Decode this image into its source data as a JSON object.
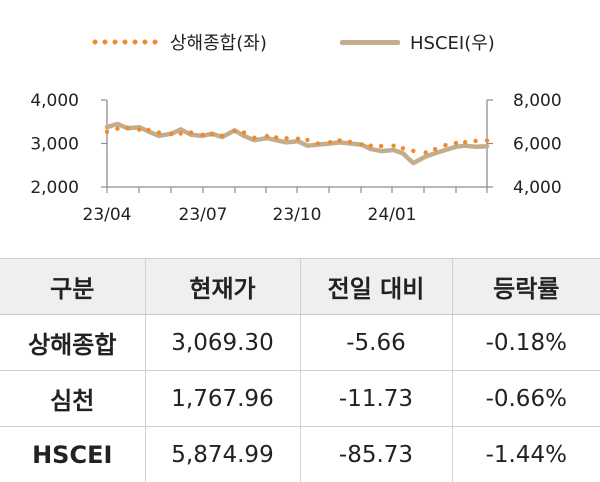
{
  "chart_data": {
    "type": "line",
    "legend_placement": "top",
    "x_tick_labels": [
      "23/04",
      "23/07",
      "23/10",
      "24/01"
    ],
    "y_left": {
      "range": [
        2000,
        4000
      ],
      "ticks": [
        "2,000",
        "3,000",
        "4,000"
      ]
    },
    "y_right": {
      "range": [
        4000,
        8000
      ],
      "ticks": [
        "4,000",
        "6,000",
        "8,000"
      ]
    },
    "grid": false,
    "series": [
      {
        "name": "상해종합(좌)",
        "axis": "left",
        "style": "dotted",
        "color": "#ef8a2d",
        "x": [
          "2023-03-31",
          "2023-04-10",
          "2023-04-20",
          "2023-05-01",
          "2023-05-10",
          "2023-05-20",
          "2023-06-01",
          "2023-06-10",
          "2023-06-20",
          "2023-07-01",
          "2023-07-10",
          "2023-07-20",
          "2023-08-01",
          "2023-08-10",
          "2023-08-20",
          "2023-09-01",
          "2023-09-10",
          "2023-09-20",
          "2023-10-01",
          "2023-10-10",
          "2023-10-20",
          "2023-11-01",
          "2023-11-10",
          "2023-11-20",
          "2023-12-01",
          "2023-12-10",
          "2023-12-20",
          "2024-01-01",
          "2024-01-10",
          "2024-01-20",
          "2024-02-01",
          "2024-02-10",
          "2024-02-20",
          "2024-03-01",
          "2024-03-10",
          "2024-03-20",
          "2024-03-31"
        ],
        "values": [
          3270,
          3340,
          3360,
          3320,
          3310,
          3250,
          3220,
          3230,
          3250,
          3200,
          3210,
          3180,
          3290,
          3250,
          3130,
          3170,
          3140,
          3120,
          3110,
          3080,
          3000,
          3030,
          3070,
          3040,
          2980,
          2950,
          2940,
          2950,
          2890,
          2830,
          2790,
          2870,
          2960,
          3010,
          3030,
          3060,
          3069
        ]
      },
      {
        "name": "HSCEI(우)",
        "axis": "right",
        "style": "solid",
        "color": "#c4ad8c",
        "x": [
          "2023-03-31",
          "2023-04-10",
          "2023-04-20",
          "2023-05-01",
          "2023-05-10",
          "2023-05-20",
          "2023-06-01",
          "2023-06-10",
          "2023-06-20",
          "2023-07-01",
          "2023-07-10",
          "2023-07-20",
          "2023-08-01",
          "2023-08-10",
          "2023-08-20",
          "2023-09-01",
          "2023-09-10",
          "2023-09-20",
          "2023-10-01",
          "2023-10-10",
          "2023-10-20",
          "2023-11-01",
          "2023-11-10",
          "2023-11-20",
          "2023-12-01",
          "2023-12-10",
          "2023-12-20",
          "2024-01-01",
          "2024-01-10",
          "2024-01-20",
          "2024-02-01",
          "2024-02-10",
          "2024-02-20",
          "2024-03-01",
          "2024-03-10",
          "2024-03-20",
          "2024-03-31"
        ],
        "values": [
          6750,
          6900,
          6700,
          6750,
          6550,
          6350,
          6450,
          6650,
          6400,
          6350,
          6450,
          6300,
          6600,
          6350,
          6150,
          6250,
          6150,
          6050,
          6100,
          5900,
          5950,
          6000,
          6050,
          6000,
          5950,
          5750,
          5650,
          5700,
          5550,
          5100,
          5400,
          5550,
          5700,
          5850,
          5900,
          5850,
          5875
        ]
      }
    ]
  },
  "table": {
    "headers": [
      "구분",
      "현재가",
      "전일 대비",
      "등락률"
    ],
    "rows": [
      {
        "name": "상해종합",
        "price": "3,069.30",
        "change": "-5.66",
        "rate": "-0.18%"
      },
      {
        "name": "심천",
        "price": "1,767.96",
        "change": "-11.73",
        "rate": "-0.66%"
      },
      {
        "name": "HSCEI",
        "price": "5,874.99",
        "change": "-85.73",
        "rate": "-1.44%"
      }
    ]
  }
}
